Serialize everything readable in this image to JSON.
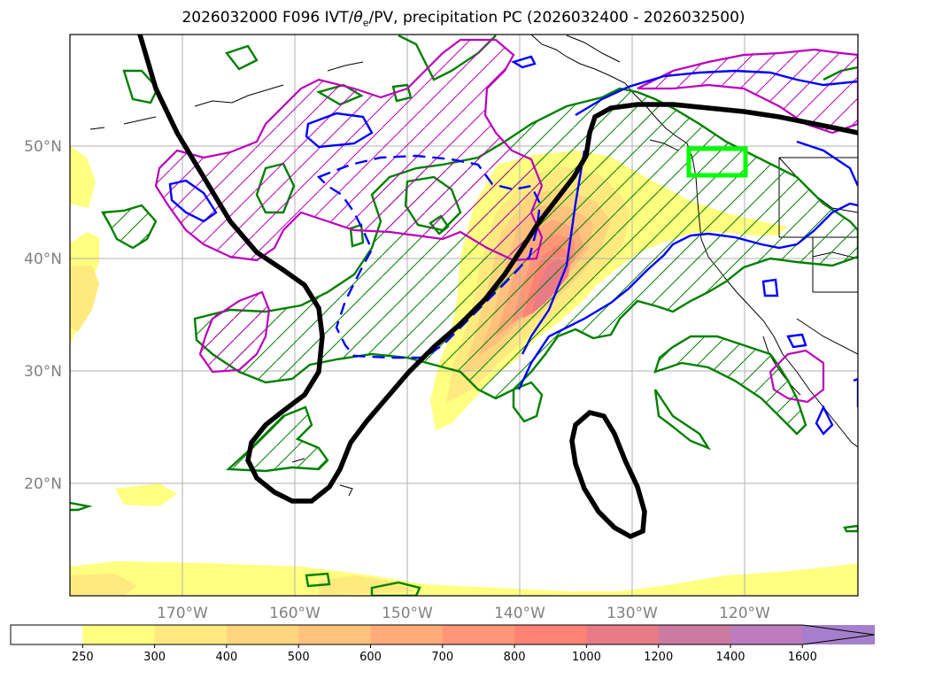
{
  "title": {
    "prefix": "2026032000 F096 IVT/",
    "theta": "θ",
    "theta_sub": "e",
    "suffix": "/PV, precipitation PC (2026032400 - 2026032500)"
  },
  "map": {
    "lon_ticks": [
      "170°W",
      "160°W",
      "150°W",
      "140°W",
      "130°W",
      "120°W"
    ],
    "lat_ticks": [
      "50°N",
      "40°N",
      "30°N",
      "20°N"
    ],
    "colors": {
      "pv_line": "#000000",
      "green_contour": "#008000",
      "magenta_contour": "#bb00bb",
      "blue_contour": "#0000ff",
      "target_box": "#00ff00",
      "grid": "#b0b0b0"
    }
  },
  "colorbar": {
    "levels": [
      "250",
      "300",
      "400",
      "500",
      "600",
      "700",
      "800",
      "1000",
      "1200",
      "1400",
      "1600"
    ],
    "colors": [
      "#ffffff",
      "#ffff80",
      "#ffea80",
      "#ffd67e",
      "#ffc27c",
      "#ffab7a",
      "#ff9677",
      "#ff8276",
      "#e87c86",
      "#cc7aa0",
      "#bd7cbd",
      "#a57fcc"
    ],
    "extend": "max"
  }
}
